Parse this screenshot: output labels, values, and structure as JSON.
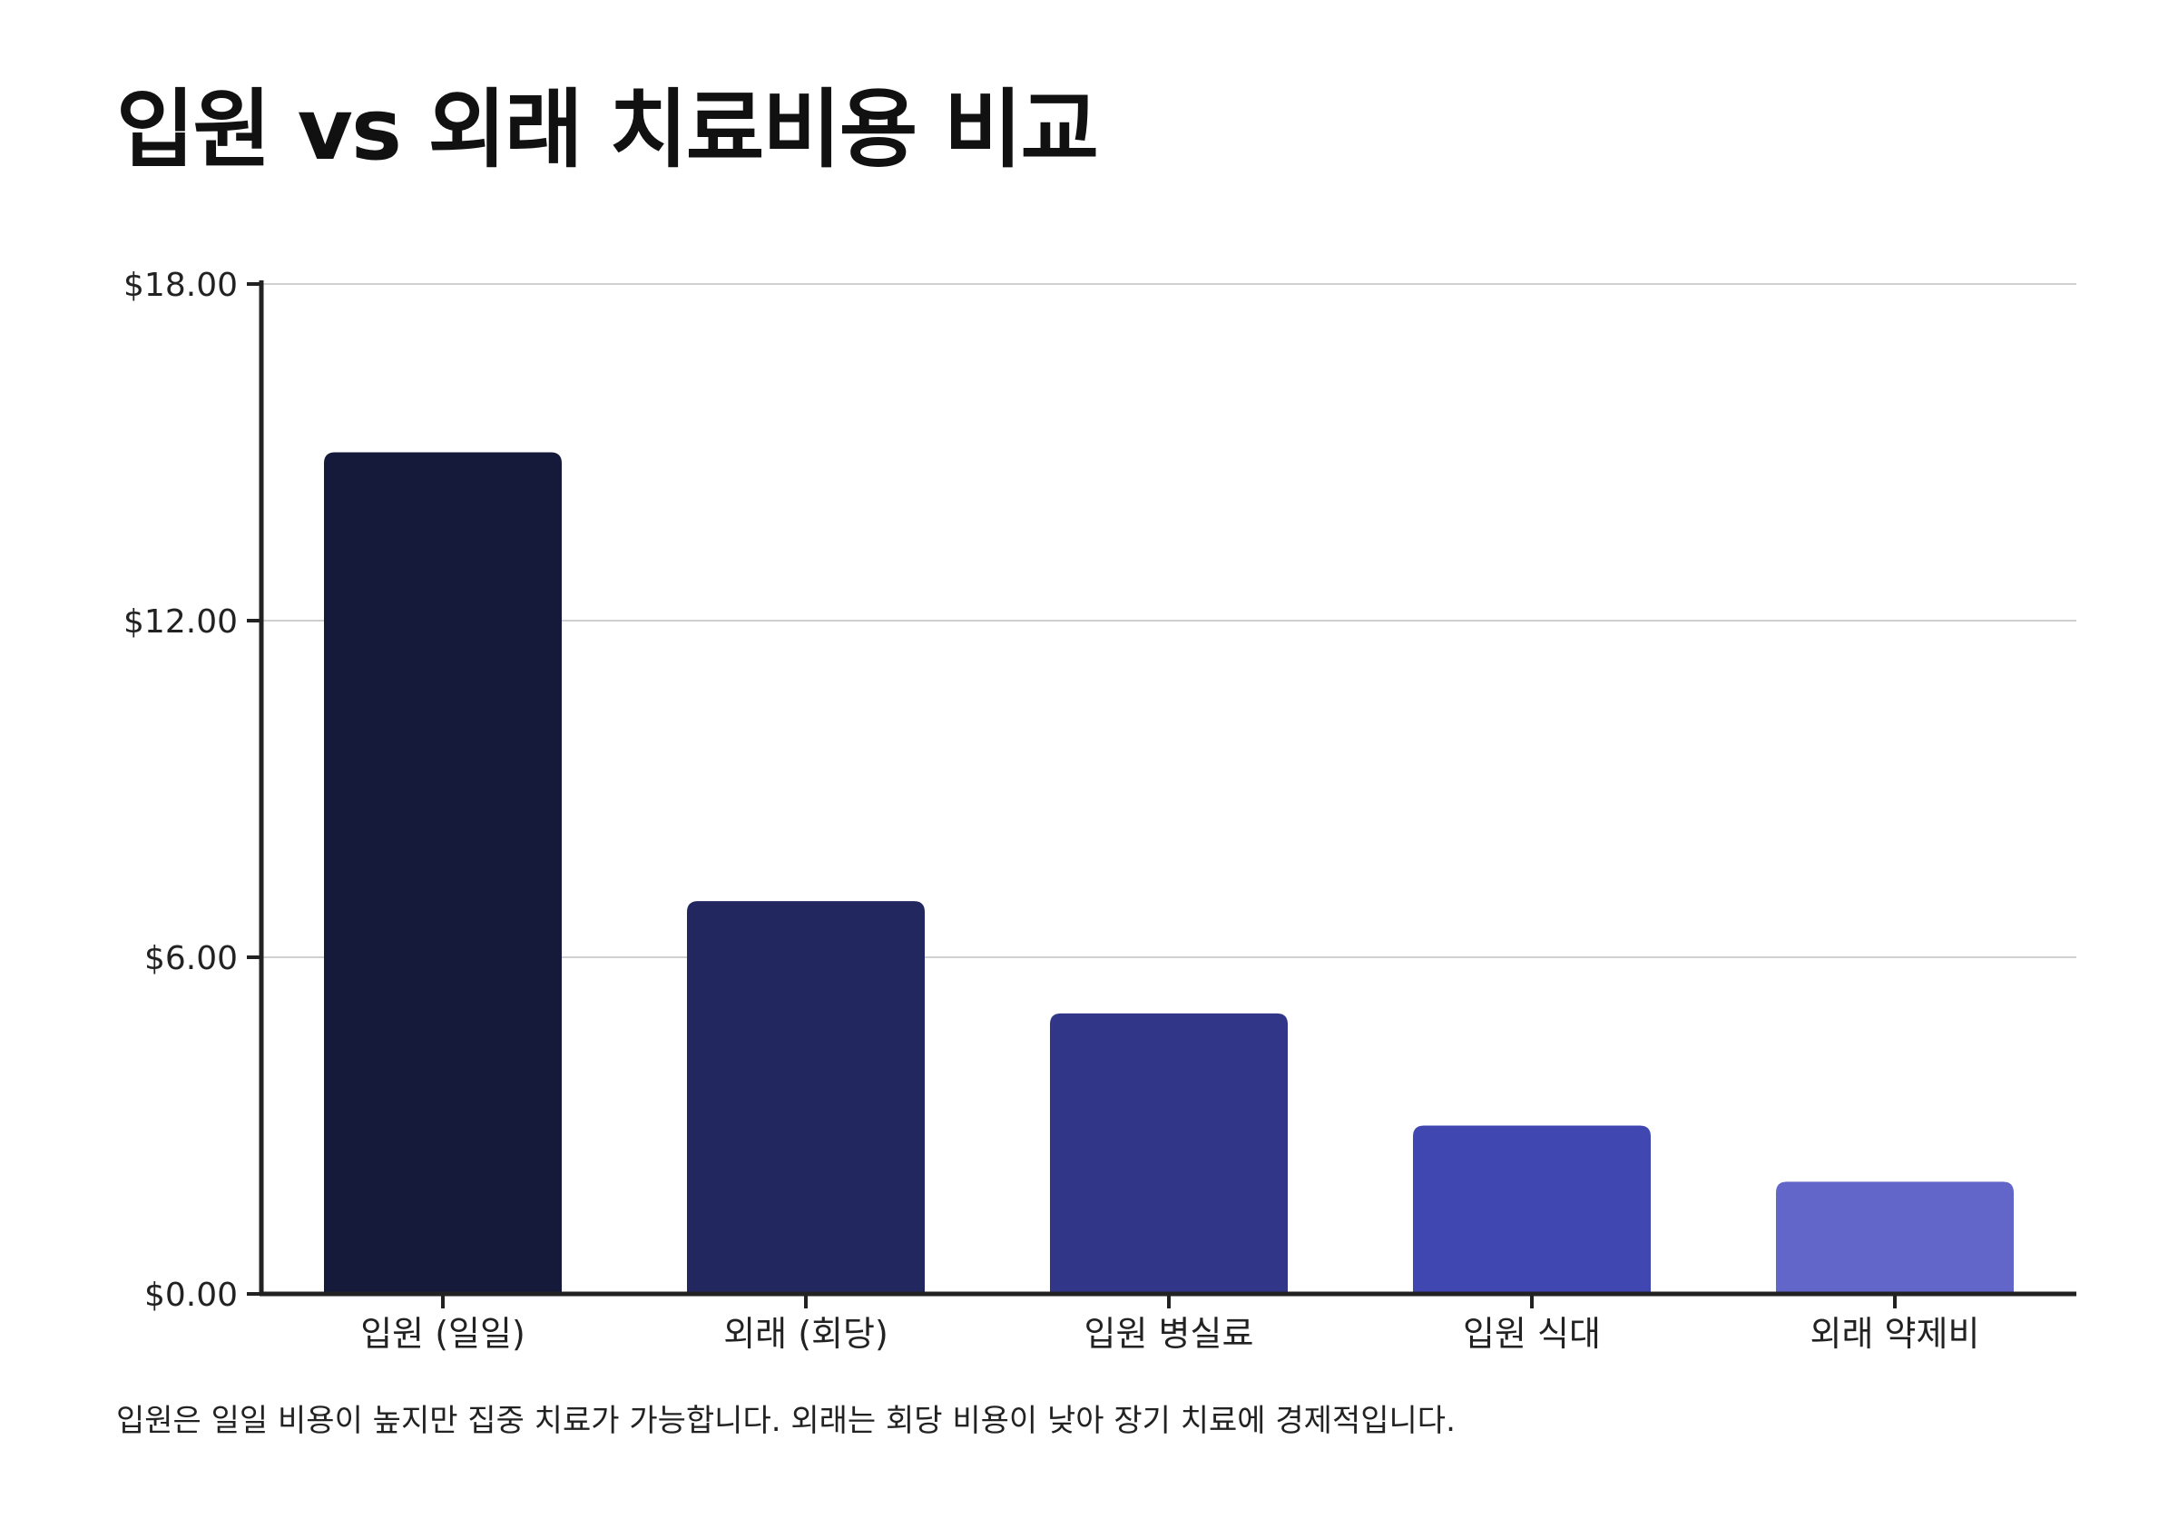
{
  "chart_data": {
    "type": "bar",
    "title": "입원 vs 외래 치료비용 비교",
    "categories": [
      "입원 (일일)",
      "외래 (회당)",
      "입원 병실료",
      "입원 식대",
      "외래 약제비"
    ],
    "values": [
      15.0,
      7.0,
      5.0,
      3.0,
      2.0
    ],
    "yticks": [
      "$0.00",
      "$6.00",
      "$12.00",
      "$18.00"
    ],
    "ytick_values": [
      0,
      6,
      12,
      18
    ],
    "ylim": [
      0,
      18
    ],
    "xlabel": "",
    "ylabel": "",
    "grid": true,
    "colors": [
      "#161a3a",
      "#22275f",
      "#313689",
      "#4147b0",
      "#6166c8"
    ]
  },
  "footnote": "입원은 일일 비용이 높지만 집중 치료가 가능합니다. 외래는 회당 비용이 낮아 장기 치료에 경제적입니다."
}
